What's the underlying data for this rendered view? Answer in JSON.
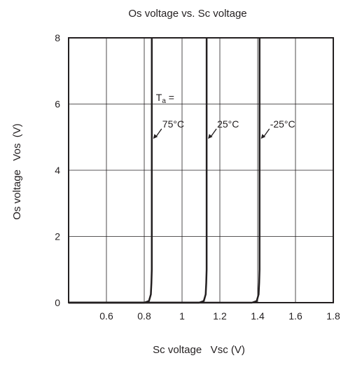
{
  "chart_data": {
    "type": "line",
    "title": "Os voltage vs. Sc voltage",
    "xlabel": "Sc voltage   Vsc (V)",
    "ylabel": "Os voltage   Vos  (V)",
    "xlim": [
      0.4,
      1.8
    ],
    "ylim": [
      0,
      8
    ],
    "x_ticks": [
      "0.6",
      "0.8",
      "1",
      "1.2",
      "1.4",
      "1.6",
      "1.8"
    ],
    "y_ticks": [
      "0",
      "2",
      "4",
      "6",
      "8"
    ],
    "grid": true,
    "series": [
      {
        "name": "75°C",
        "label": "75°C",
        "x": [
          0.4,
          0.8,
          0.825,
          0.835,
          0.838,
          0.84,
          0.84
        ],
        "y": [
          0,
          0,
          0.05,
          0.25,
          0.6,
          1.0,
          8
        ]
      },
      {
        "name": "25°C",
        "label": "25°C",
        "x": [
          0.4,
          1.09,
          1.115,
          1.125,
          1.128,
          1.13,
          1.13
        ],
        "y": [
          0,
          0,
          0.05,
          0.25,
          0.6,
          1.0,
          8
        ]
      },
      {
        "name": "-25°C",
        "label": "-25°C",
        "x": [
          0.4,
          1.37,
          1.395,
          1.405,
          1.408,
          1.41,
          1.41
        ],
        "y": [
          0,
          0,
          0.05,
          0.25,
          0.6,
          1.0,
          8
        ]
      }
    ],
    "annotation_prefix": {
      "base": "T",
      "subscript": "a",
      "suffix": " ="
    },
    "colors": {
      "line": "#231f20",
      "grid": "#231f20",
      "frame": "#231f20"
    }
  }
}
